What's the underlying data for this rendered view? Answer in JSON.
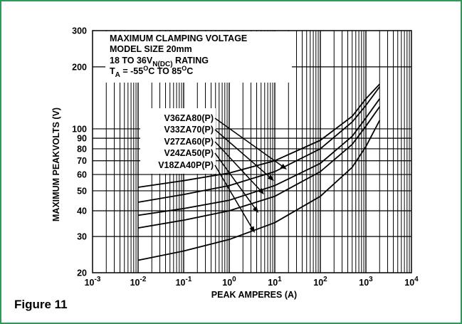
{
  "figure_caption": "Figure 11",
  "colors": {
    "frame": "#2e9a5a",
    "ink": "#000000",
    "background": "#ffffff"
  },
  "chart_data": {
    "type": "line",
    "x_scale": "log",
    "y_scale": "log",
    "xlim": [
      0.001,
      10000
    ],
    "ylim": [
      20,
      300
    ],
    "grid": true,
    "xlabel": "PEAK AMPERES (A)",
    "ylabel": "MAXIMUM PEAKVOLTS (V)",
    "x_ticks": [
      {
        "value": 0.001,
        "base": "10",
        "exp": "-3"
      },
      {
        "value": 0.01,
        "base": "10",
        "exp": "-2"
      },
      {
        "value": 0.1,
        "base": "10",
        "exp": "-1"
      },
      {
        "value": 1,
        "base": "10",
        "exp": "0"
      },
      {
        "value": 10,
        "base": "10",
        "exp": "1"
      },
      {
        "value": 100,
        "base": "10",
        "exp": "2"
      },
      {
        "value": 1000,
        "base": "10",
        "exp": "3"
      },
      {
        "value": 10000,
        "base": "10",
        "exp": "4"
      }
    ],
    "y_ticks": [
      {
        "value": 20,
        "label": "20"
      },
      {
        "value": 30,
        "label": "30"
      },
      {
        "value": 40,
        "label": "40"
      },
      {
        "value": 50,
        "label": "50"
      },
      {
        "value": 60,
        "label": "60"
      },
      {
        "value": 70,
        "label": "70"
      },
      {
        "value": 80,
        "label": "80"
      },
      {
        "value": 90,
        "label": "90"
      },
      {
        "value": 100,
        "label": "100"
      },
      {
        "value": 200,
        "label": "200"
      },
      {
        "value": 300,
        "label": "300"
      }
    ],
    "annotation": {
      "line1": "MAXIMUM CLAMPING VOLTAGE",
      "line2": "MODEL SIZE 20mm",
      "line3_main": "18 TO 36V",
      "line3_sub": "N(DC)",
      "line3_tail": " RATING",
      "line4_main": "T",
      "line4_sub": "A",
      "line4_a": " = -55",
      "line4_sup1": "O",
      "line4_b": "C TO 85",
      "line4_sup2": "O",
      "line4_c": "C"
    },
    "series": [
      {
        "name": "V36ZA80(P)",
        "x": [
          0.01,
          0.1,
          1,
          10,
          100,
          500,
          1000,
          2000
        ],
        "y": [
          52,
          56,
          61,
          70,
          88,
          115,
          140,
          165
        ]
      },
      {
        "name": "V33ZA70(P)",
        "x": [
          0.01,
          0.1,
          1,
          10,
          100,
          500,
          1000,
          2000
        ],
        "y": [
          44,
          48,
          53,
          62,
          80,
          108,
          130,
          160
        ]
      },
      {
        "name": "V27ZA60(P)",
        "x": [
          0.01,
          0.1,
          1,
          10,
          100,
          500,
          1000,
          2000
        ],
        "y": [
          38,
          41,
          45,
          53,
          68,
          92,
          113,
          140
        ]
      },
      {
        "name": "V24ZA50(P)",
        "x": [
          0.01,
          0.1,
          1,
          10,
          100,
          500,
          1000,
          2000
        ],
        "y": [
          33,
          36,
          40,
          47,
          62,
          84,
          103,
          128
        ]
      },
      {
        "name": "V18ZA40P(P)",
        "x": [
          0.01,
          0.1,
          1,
          10,
          100,
          500,
          1000,
          2000
        ],
        "y": [
          23,
          25.5,
          29,
          35,
          47,
          65,
          82,
          110
        ]
      }
    ]
  }
}
